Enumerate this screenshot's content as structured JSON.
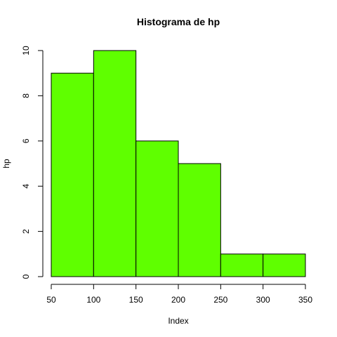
{
  "chart_data": {
    "type": "bar",
    "title": "Histograma de  hp",
    "xlabel": "Index",
    "ylabel": "hp",
    "bins": [
      {
        "from": 50,
        "to": 100,
        "count": 9
      },
      {
        "from": 100,
        "to": 150,
        "count": 10
      },
      {
        "from": 150,
        "to": 200,
        "count": 6
      },
      {
        "from": 200,
        "to": 250,
        "count": 5
      },
      {
        "from": 250,
        "to": 300,
        "count": 1
      },
      {
        "from": 300,
        "to": 350,
        "count": 1
      }
    ],
    "xlim": [
      50,
      350
    ],
    "ylim": [
      0,
      10
    ],
    "x_ticks": [
      50,
      100,
      150,
      200,
      250,
      300,
      350
    ],
    "y_ticks": [
      0,
      2,
      4,
      6,
      8,
      10
    ],
    "bar_color": "#5fff00",
    "grid": false,
    "legend": "none"
  }
}
